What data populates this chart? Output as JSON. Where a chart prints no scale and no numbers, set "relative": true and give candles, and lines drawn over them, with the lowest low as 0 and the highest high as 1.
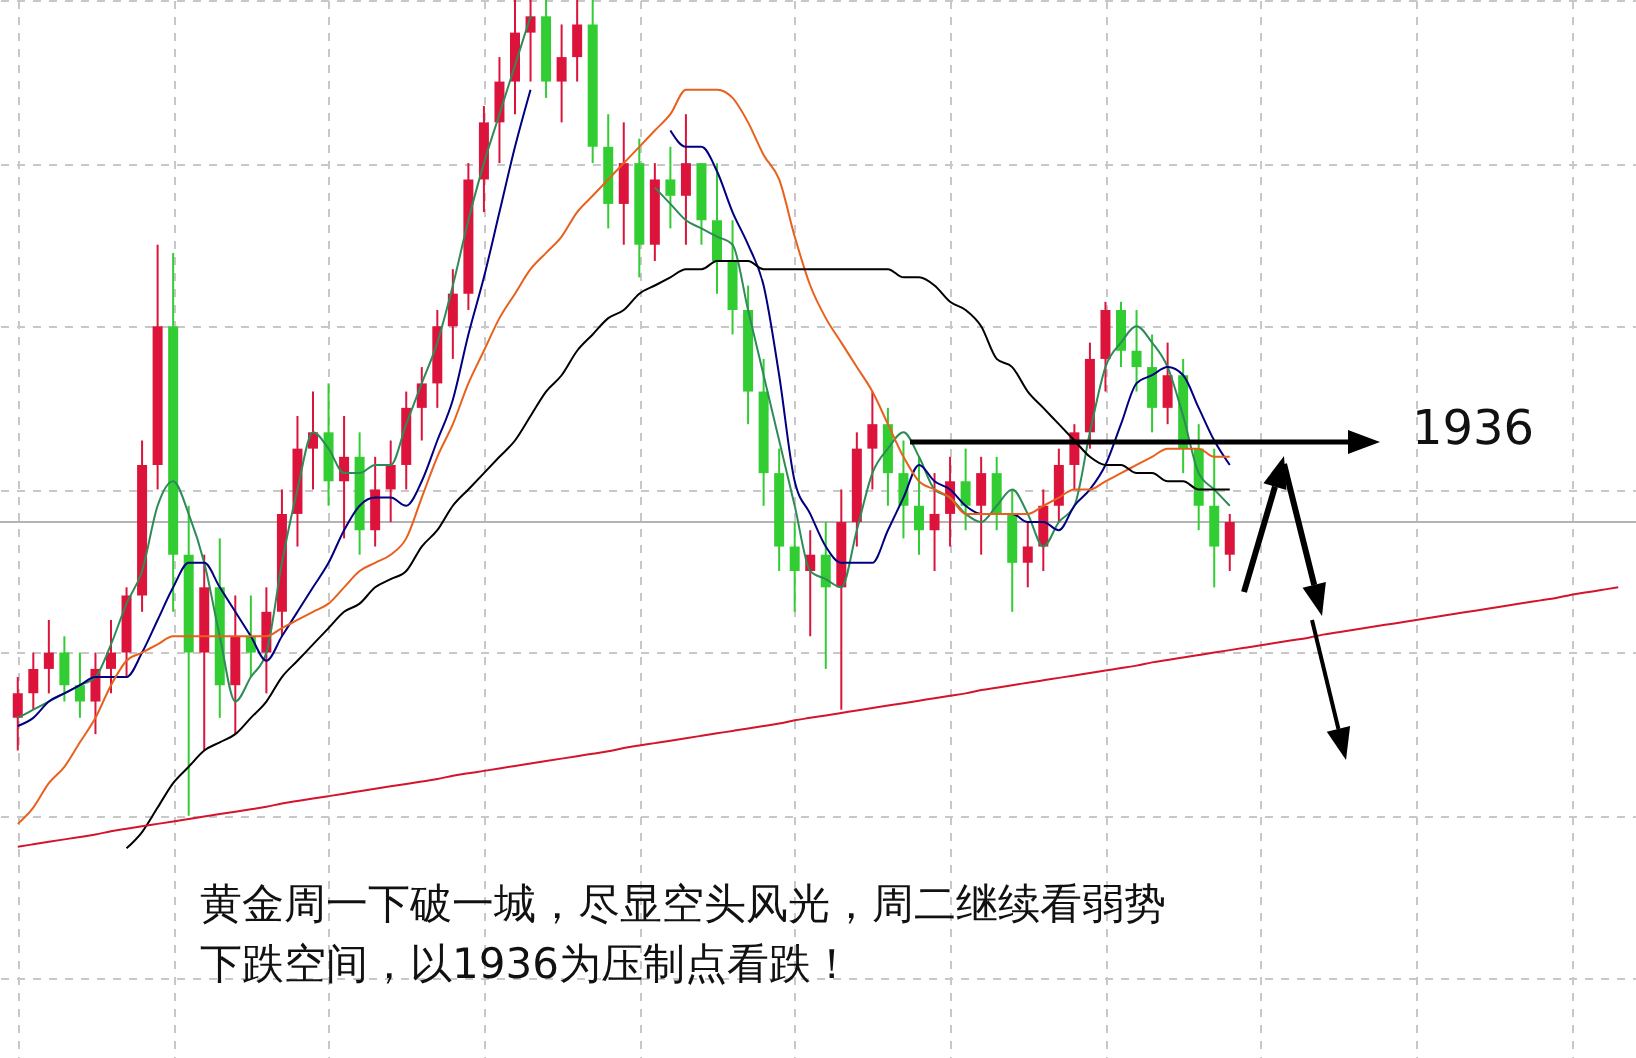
{
  "chart_data": {
    "type": "candlestick",
    "relative": true,
    "grid": true,
    "categories": [
      null,
      null,
      null,
      null,
      null,
      null,
      null,
      null,
      null,
      null,
      null,
      null,
      null,
      null,
      null,
      null,
      null,
      null,
      null,
      null,
      null,
      null,
      null,
      null,
      null,
      null,
      null,
      null,
      null,
      null,
      null,
      null,
      null,
      null,
      null,
      null,
      null,
      null,
      null,
      null,
      null,
      null,
      null,
      null,
      null,
      null,
      null,
      null,
      null,
      null,
      null,
      null,
      null,
      null,
      null,
      null,
      null,
      null,
      null,
      null,
      null,
      null,
      null,
      null,
      null,
      null,
      null,
      null,
      null,
      null,
      null,
      null,
      null,
      null,
      null,
      null,
      null,
      null,
      null,
      null,
      null,
      null,
      null,
      null,
      null,
      null,
      null,
      null,
      null,
      null,
      null,
      null,
      null,
      null,
      null,
      null,
      null,
      null,
      null,
      null,
      null,
      null,
      null,
      null
    ],
    "ohlc": [
      [
        0.12,
        0.17,
        0.08,
        0.15
      ],
      [
        0.15,
        0.2,
        0.13,
        0.18
      ],
      [
        0.18,
        0.24,
        0.15,
        0.2
      ],
      [
        0.2,
        0.22,
        0.14,
        0.16
      ],
      [
        0.16,
        0.2,
        0.12,
        0.14
      ],
      [
        0.14,
        0.2,
        0.1,
        0.18
      ],
      [
        0.18,
        0.24,
        0.15,
        0.2
      ],
      [
        0.2,
        0.28,
        0.17,
        0.27
      ],
      [
        0.27,
        0.46,
        0.25,
        0.43
      ],
      [
        0.43,
        0.7,
        0.4,
        0.6
      ],
      [
        0.6,
        0.69,
        0.25,
        0.32
      ],
      [
        0.32,
        0.38,
        0.0,
        0.2
      ],
      [
        0.2,
        0.32,
        0.08,
        0.28
      ],
      [
        0.28,
        0.34,
        0.12,
        0.16
      ],
      [
        0.16,
        0.27,
        0.1,
        0.22
      ],
      [
        0.22,
        0.27,
        0.17,
        0.2
      ],
      [
        0.2,
        0.28,
        0.15,
        0.25
      ],
      [
        0.25,
        0.4,
        0.22,
        0.37
      ],
      [
        0.37,
        0.49,
        0.33,
        0.45
      ],
      [
        0.45,
        0.52,
        0.4,
        0.47
      ],
      [
        0.47,
        0.53,
        0.38,
        0.41
      ],
      [
        0.41,
        0.49,
        0.34,
        0.44
      ],
      [
        0.44,
        0.47,
        0.32,
        0.35
      ],
      [
        0.35,
        0.44,
        0.33,
        0.4
      ],
      [
        0.4,
        0.46,
        0.36,
        0.43
      ],
      [
        0.43,
        0.52,
        0.4,
        0.5
      ],
      [
        0.5,
        0.55,
        0.46,
        0.53
      ],
      [
        0.53,
        0.62,
        0.5,
        0.6
      ],
      [
        0.6,
        0.67,
        0.56,
        0.64
      ],
      [
        0.64,
        0.8,
        0.62,
        0.78
      ],
      [
        0.78,
        0.87,
        0.74,
        0.85
      ],
      [
        0.85,
        0.93,
        0.8,
        0.9
      ],
      [
        0.9,
        1,
        0.86,
        0.96
      ],
      [
        0.96,
        1,
        0.9,
        0.98
      ],
      [
        0.98,
        1,
        0.88,
        0.9
      ],
      [
        0.9,
        0.97,
        0.85,
        0.93
      ],
      [
        0.93,
        1,
        0.9,
        0.97
      ],
      [
        0.97,
        1,
        0.8,
        0.82
      ],
      [
        0.82,
        0.86,
        0.72,
        0.75
      ],
      [
        0.75,
        0.85,
        0.7,
        0.8
      ],
      [
        0.8,
        0.83,
        0.66,
        0.7
      ],
      [
        0.7,
        0.8,
        0.68,
        0.78
      ],
      [
        0.78,
        0.82,
        0.72,
        0.76
      ],
      [
        0.76,
        0.86,
        0.7,
        0.8
      ],
      [
        0.8,
        0.8,
        0.7,
        0.73
      ],
      [
        0.73,
        0.8,
        0.64,
        0.68
      ],
      [
        0.68,
        0.73,
        0.59,
        0.62
      ],
      [
        0.62,
        0.65,
        0.48,
        0.52
      ],
      [
        0.52,
        0.56,
        0.38,
        0.42
      ],
      [
        0.42,
        0.45,
        0.3,
        0.33
      ],
      [
        0.33,
        0.36,
        0.25,
        0.3
      ],
      [
        0.3,
        0.35,
        0.22,
        0.32
      ],
      [
        0.32,
        0.36,
        0.18,
        0.28
      ],
      [
        0.28,
        0.4,
        0.13,
        0.36
      ],
      [
        0.36,
        0.47,
        0.33,
        0.45
      ],
      [
        0.45,
        0.52,
        0.4,
        0.48
      ],
      [
        0.48,
        0.5,
        0.38,
        0.42
      ],
      [
        0.42,
        0.46,
        0.34,
        0.38
      ],
      [
        0.38,
        0.44,
        0.32,
        0.35
      ],
      [
        0.35,
        0.42,
        0.3,
        0.37
      ],
      [
        0.37,
        0.44,
        0.33,
        0.41
      ],
      [
        0.41,
        0.45,
        0.35,
        0.38
      ],
      [
        0.38,
        0.44,
        0.32,
        0.42
      ],
      [
        0.42,
        0.44,
        0.35,
        0.37
      ],
      [
        0.37,
        0.4,
        0.25,
        0.31
      ],
      [
        0.31,
        0.36,
        0.28,
        0.33
      ],
      [
        0.33,
        0.4,
        0.3,
        0.38
      ],
      [
        0.38,
        0.45,
        0.36,
        0.43
      ],
      [
        0.43,
        0.48,
        0.4,
        0.47
      ],
      [
        0.47,
        0.58,
        0.45,
        0.56
      ],
      [
        0.56,
        0.63,
        0.52,
        0.62
      ],
      [
        0.62,
        0.63,
        0.55,
        0.57
      ],
      [
        0.57,
        0.62,
        0.52,
        0.55
      ],
      [
        0.55,
        0.59,
        0.47,
        0.5
      ],
      [
        0.5,
        0.58,
        0.48,
        0.54
      ],
      [
        0.54,
        0.56,
        0.42,
        0.45
      ],
      [
        0.45,
        0.48,
        0.35,
        0.38
      ],
      [
        0.38,
        0.45,
        0.28,
        0.33
      ],
      [
        0.32,
        0.37,
        0.3,
        0.36
      ],
      null,
      null,
      null,
      null,
      null,
      null,
      null,
      null,
      null,
      null,
      null,
      null,
      null,
      null,
      null,
      null,
      null,
      null,
      null,
      null,
      null,
      null,
      null,
      null,
      null
    ],
    "colors": [
      "#dc143c",
      "#dc143c",
      "#dc143c",
      "#32cd32",
      "#32cd32",
      "#dc143c",
      "#dc143c",
      "#dc143c",
      "#dc143c",
      "#dc143c",
      "#32cd32",
      "#32cd32",
      "#dc143c",
      "#32cd32",
      "#dc143c",
      "#32cd32",
      "#dc143c",
      "#dc143c",
      "#dc143c",
      "#dc143c",
      "#32cd32",
      "#dc143c",
      "#32cd32",
      "#dc143c",
      "#dc143c",
      "#dc143c",
      "#dc143c",
      "#dc143c",
      "#dc143c",
      "#dc143c",
      "#dc143c",
      "#dc143c",
      "#dc143c",
      "#dc143c",
      "#32cd32",
      "#dc143c",
      "#dc143c",
      "#32cd32",
      "#32cd32",
      "#dc143c",
      "#32cd32",
      "#dc143c",
      "#32cd32",
      "#dc143c",
      "#32cd32",
      "#32cd32",
      "#32cd32",
      "#32cd32",
      "#32cd32",
      "#32cd32",
      "#32cd32",
      "#dc143c",
      "#32cd32",
      "#dc143c",
      "#dc143c",
      "#dc143c",
      "#32cd32",
      "#32cd32",
      "#32cd32",
      "#dc143c",
      "#dc143c",
      "#32cd32",
      "#dc143c",
      "#32cd32",
      "#32cd32",
      "#dc143c",
      "#dc143c",
      "#dc143c",
      "#dc143c",
      "#dc143c",
      "#dc143c",
      "#32cd32",
      "#32cd32",
      "#32cd32",
      "#dc143c",
      "#32cd32",
      "#32cd32",
      "#32cd32",
      "#dc143c",
      null,
      null,
      null,
      null,
      null,
      null,
      null,
      null,
      null,
      null,
      null,
      null,
      null,
      null,
      null,
      null,
      null,
      null,
      null,
      null,
      null,
      null,
      null,
      null,
      null
    ],
    "series": [
      {
        "type": "line",
        "color": "#2e8b57",
        "values": [
          0.12,
          0.13,
          0.14,
          0.15,
          0.16,
          0.17,
          0.21,
          0.26,
          0.3,
          0.38,
          0.41,
          0.37,
          0.31,
          0.22,
          0.14,
          0.17,
          0.2,
          0.31,
          0.4,
          0.47,
          0.45,
          0.42,
          0.42,
          0.43,
          0.43,
          0.48,
          0.53,
          0.58,
          0.65,
          0.73,
          0.8,
          0.86,
          0.92,
          0.98,
          null,
          null,
          null,
          null,
          null,
          null,
          null,
          0.77,
          0.75,
          0.73,
          0.72,
          0.71,
          0.7,
          0.62,
          0.54,
          0.46,
          0.38,
          0.3,
          0.29,
          0.28,
          0.35,
          0.42,
          0.45,
          0.47,
          0.44,
          0.4,
          0.39,
          0.37,
          0.36,
          0.38,
          0.4,
          0.37,
          0.33,
          0.36,
          0.38,
          0.47,
          0.55,
          0.58,
          0.6,
          0.58,
          0.55,
          0.49,
          0.42,
          0.4,
          0.38,
          null,
          null,
          null,
          null,
          null,
          null,
          null,
          null,
          null,
          null,
          null,
          null,
          null,
          null,
          null,
          null,
          null,
          null,
          null,
          null,
          null,
          null,
          null,
          null,
          null
        ]
      },
      {
        "type": "line",
        "color": "#000080",
        "values": [
          0.11,
          0.12,
          0.14,
          0.15,
          0.16,
          0.17,
          0.17,
          0.17,
          0.2,
          0.24,
          0.28,
          0.31,
          0.31,
          0.28,
          0.25,
          0.22,
          0.19,
          0.22,
          0.25,
          0.28,
          0.31,
          0.35,
          0.38,
          0.39,
          0.39,
          0.38,
          0.41,
          0.46,
          0.51,
          0.59,
          0.66,
          0.74,
          0.82,
          0.89,
          null,
          null,
          null,
          null,
          null,
          null,
          null,
          null,
          0.84,
          0.82,
          0.82,
          0.79,
          0.74,
          0.7,
          0.65,
          0.54,
          0.41,
          0.37,
          0.33,
          0.31,
          0.31,
          0.31,
          0.35,
          0.39,
          0.43,
          0.41,
          0.4,
          0.38,
          0.37,
          0.37,
          0.37,
          0.36,
          0.36,
          0.35,
          0.38,
          0.4,
          0.43,
          0.48,
          0.53,
          0.54,
          0.55,
          0.54,
          0.5,
          0.46,
          0.43,
          null,
          null,
          null,
          null,
          null,
          null,
          null,
          null,
          null,
          null,
          null,
          null,
          null,
          null,
          null,
          null,
          null,
          null,
          null,
          null,
          null,
          null,
          null,
          null,
          null
        ]
      },
      {
        "type": "line",
        "color": "#e8601c",
        "values": [
          -0.01,
          0.01,
          0.04,
          0.06,
          0.09,
          0.12,
          0.16,
          0.19,
          0.2,
          0.21,
          0.22,
          0.22,
          0.22,
          0.22,
          0.22,
          0.22,
          0.22,
          0.23,
          0.24,
          0.25,
          0.26,
          0.28,
          0.3,
          0.31,
          0.32,
          0.34,
          0.39,
          0.44,
          0.48,
          0.53,
          0.57,
          0.61,
          0.64,
          0.67,
          0.69,
          0.71,
          0.74,
          0.76,
          0.78,
          0.8,
          0.82,
          0.84,
          0.86,
          0.89,
          0.89,
          0.89,
          0.88,
          0.85,
          0.81,
          0.78,
          0.71,
          0.65,
          0.61,
          0.58,
          0.55,
          0.52,
          0.48,
          0.44,
          0.41,
          0.4,
          0.39,
          0.37,
          0.37,
          0.37,
          0.37,
          0.37,
          0.38,
          0.39,
          0.4,
          0.4,
          0.41,
          0.42,
          0.43,
          0.44,
          0.45,
          0.45,
          0.45,
          0.44,
          0.44,
          null,
          null,
          null,
          null,
          null,
          null,
          null,
          null,
          null,
          null,
          null,
          null,
          null,
          null,
          null,
          null,
          null,
          null,
          null,
          null,
          null,
          null,
          null,
          null,
          null
        ]
      },
      {
        "type": "line",
        "color": "#000000",
        "values": [
          null,
          null,
          null,
          null,
          null,
          null,
          null,
          -0.04,
          -0.02,
          0.01,
          0.04,
          0.06,
          0.08,
          0.09,
          0.1,
          0.12,
          0.14,
          0.17,
          0.19,
          0.21,
          0.23,
          0.25,
          0.26,
          0.28,
          0.29,
          0.3,
          0.33,
          0.35,
          0.38,
          0.4,
          0.42,
          0.44,
          0.46,
          0.49,
          0.52,
          0.54,
          0.57,
          0.59,
          0.61,
          0.62,
          0.64,
          0.65,
          0.66,
          0.67,
          0.67,
          0.68,
          0.68,
          0.68,
          0.67,
          0.67,
          0.67,
          0.67,
          0.67,
          0.67,
          0.67,
          0.67,
          0.67,
          0.66,
          0.66,
          0.65,
          0.63,
          0.62,
          0.6,
          0.56,
          0.55,
          0.52,
          0.5,
          0.48,
          0.46,
          0.44,
          0.43,
          0.43,
          0.42,
          0.42,
          0.41,
          0.41,
          0.4,
          0.4,
          0.4,
          null,
          null,
          null,
          null,
          null,
          null,
          null,
          null,
          null,
          null,
          null,
          null,
          null,
          null,
          null,
          null,
          null,
          null,
          null,
          null,
          null,
          null,
          null,
          null,
          null
        ]
      },
      {
        "type": "line",
        "color": "#d4142c",
        "values": [
          -0.038,
          -0.035,
          -0.032,
          -0.029,
          -0.026,
          -0.023,
          -0.019,
          -0.016,
          -0.013,
          -0.01,
          -0.007,
          -0.004,
          -0.001,
          0.002,
          0.005,
          0.008,
          0.011,
          0.015,
          0.018,
          0.021,
          0.024,
          0.027,
          0.03,
          0.033,
          0.036,
          0.039,
          0.042,
          0.045,
          0.049,
          0.052,
          0.055,
          0.058,
          0.061,
          0.064,
          0.067,
          0.07,
          0.073,
          0.076,
          0.079,
          0.083,
          0.086,
          0.089,
          0.092,
          0.095,
          0.098,
          0.101,
          0.104,
          0.107,
          0.11,
          0.113,
          0.117,
          0.12,
          0.123,
          0.126,
          0.129,
          0.132,
          0.135,
          0.138,
          0.141,
          0.144,
          0.147,
          0.15,
          0.154,
          0.157,
          0.16,
          0.163,
          0.166,
          0.169,
          0.172,
          0.175,
          0.178,
          0.181,
          0.184,
          0.188,
          0.191,
          0.194,
          0.197,
          0.2,
          0.203,
          0.206,
          0.209,
          0.212,
          0.215,
          0.218,
          0.222,
          0.225,
          0.228,
          0.231,
          0.234,
          0.237,
          0.24,
          0.243,
          0.246,
          0.249,
          0.252,
          0.255,
          0.258,
          0.261,
          0.264,
          0.267,
          0.271,
          0.274,
          0.277,
          0.28
        ]
      }
    ],
    "ref_lines": [
      {
        "axis": "y",
        "value": 0.36,
        "color": "#b4b4b4"
      }
    ],
    "annotations": [
      "黄金周一下破一城，尽显空头风光，周二继续看弱势",
      "下跌空间，以1936为压制点看跌！",
      "1936"
    ]
  }
}
